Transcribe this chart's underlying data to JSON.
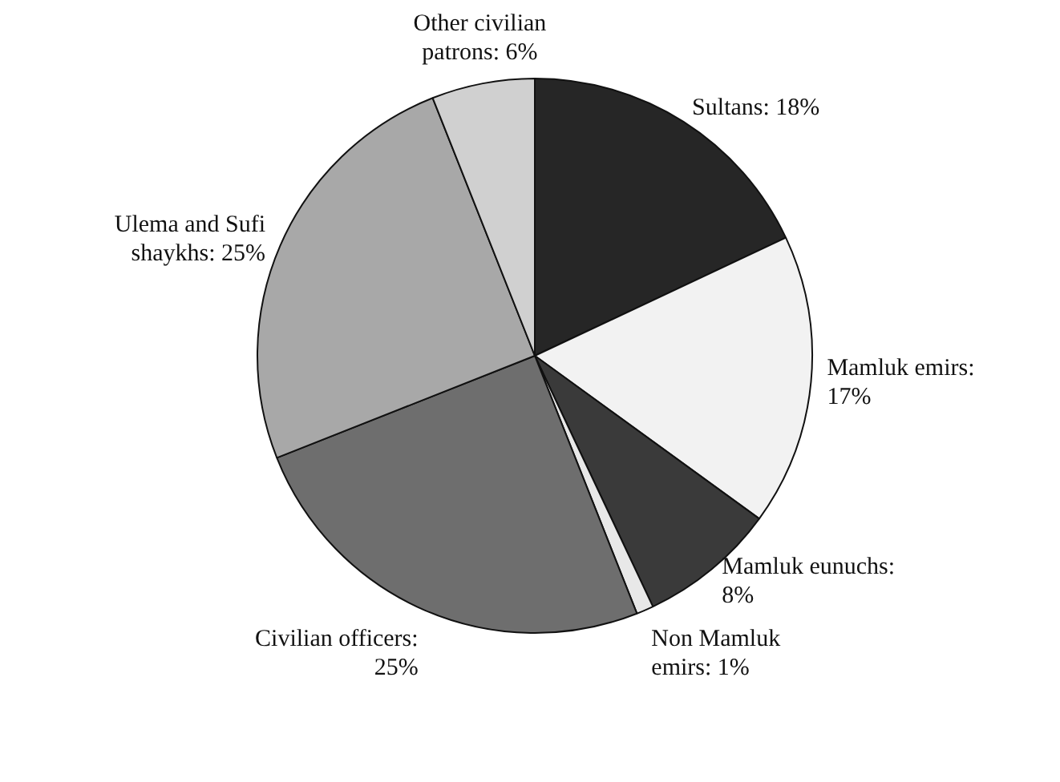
{
  "chart_data": {
    "type": "pie",
    "categories": [
      "Sultans: 18%",
      "Mamluk emirs: 17%",
      "Mamluk eunuchs: 8%",
      "Non Mamluk emirs: 1%",
      "Civilian officers: 25%",
      "Ulema and Sufi shaykhs: 25%",
      "Other civilian patrons: 6%"
    ],
    "values": [
      18,
      17,
      8,
      1,
      25,
      25,
      6
    ],
    "colors": [
      "#262626",
      "#f2f2f2",
      "#3a3a3a",
      "#e8e8e8",
      "#6e6e6e",
      "#a8a8a8",
      "#d0d0d0"
    ],
    "legend": false
  }
}
